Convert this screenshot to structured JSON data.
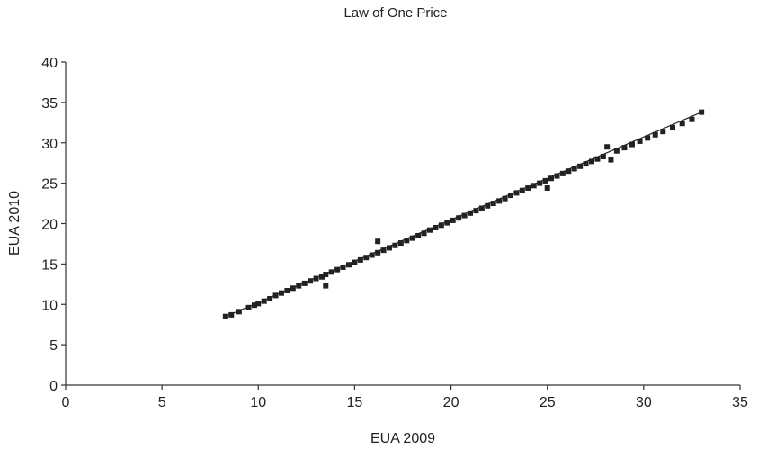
{
  "chart_data": {
    "type": "scatter",
    "title": "Law of One Price",
    "xlabel": "EUA 2009",
    "ylabel": "EUA 2010",
    "xlim": [
      0,
      35
    ],
    "ylim": [
      0,
      40
    ],
    "xticks": [
      0,
      5,
      10,
      15,
      20,
      25,
      30,
      35
    ],
    "yticks": [
      0,
      5,
      10,
      15,
      20,
      25,
      30,
      35,
      40
    ],
    "grid": false,
    "legend": "none",
    "marker": "square",
    "trendline": {
      "x": [
        8.2,
        33.1
      ],
      "y": [
        8.4,
        33.9
      ]
    },
    "series": [
      {
        "x": [
          8.3,
          8.6,
          9.0,
          9.5,
          9.8,
          10.0,
          10.3,
          10.6,
          10.9,
          11.2,
          11.5,
          11.8,
          12.1,
          12.4,
          12.7,
          13.0,
          13.3,
          13.5,
          13.5,
          13.8,
          14.1,
          14.4,
          14.7,
          15.0,
          15.3,
          15.6,
          15.9,
          16.2,
          16.2,
          16.5,
          16.8,
          17.1,
          17.4,
          17.7,
          18.0,
          18.3,
          18.6,
          18.9,
          19.2,
          19.5,
          19.8,
          20.1,
          20.4,
          20.7,
          21.0,
          21.3,
          21.6,
          21.9,
          22.2,
          22.5,
          22.8,
          23.1,
          23.4,
          23.7,
          24.0,
          24.3,
          24.6,
          24.9,
          25.0,
          25.2,
          25.5,
          25.8,
          26.1,
          26.4,
          26.7,
          27.0,
          27.3,
          27.6,
          27.9,
          28.1,
          28.3,
          28.6,
          29.0,
          29.4,
          29.8,
          30.2,
          30.6,
          31.0,
          31.5,
          32.0,
          32.5,
          33.0
        ],
        "y": [
          8.5,
          8.7,
          9.1,
          9.6,
          9.9,
          10.1,
          10.4,
          10.7,
          11.1,
          11.4,
          11.7,
          12.0,
          12.3,
          12.6,
          12.9,
          13.2,
          13.4,
          12.3,
          13.7,
          14.0,
          14.3,
          14.6,
          14.9,
          15.2,
          15.5,
          15.8,
          16.1,
          16.4,
          17.8,
          16.7,
          17.0,
          17.3,
          17.6,
          17.9,
          18.2,
          18.5,
          18.8,
          19.2,
          19.5,
          19.8,
          20.1,
          20.4,
          20.7,
          21.0,
          21.3,
          21.6,
          21.9,
          22.2,
          22.5,
          22.8,
          23.1,
          23.5,
          23.8,
          24.1,
          24.4,
          24.7,
          25.0,
          25.3,
          24.4,
          25.6,
          25.9,
          26.2,
          26.5,
          26.8,
          27.1,
          27.4,
          27.7,
          28.0,
          28.3,
          29.5,
          27.9,
          29.0,
          29.4,
          29.8,
          30.2,
          30.6,
          31.0,
          31.4,
          31.9,
          32.4,
          32.9,
          33.8
        ]
      }
    ]
  }
}
